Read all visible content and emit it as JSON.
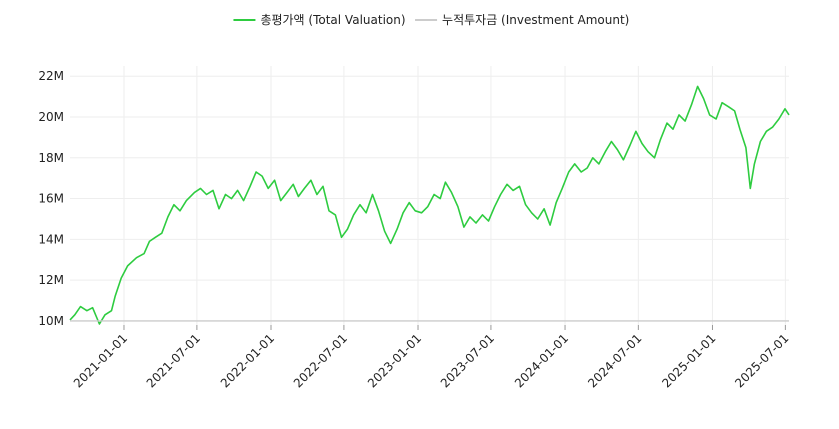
{
  "chart_data": {
    "type": "line",
    "title": "",
    "xlabel": "",
    "ylabel": "",
    "x_range": [
      "2020-08-20",
      "2025-07-10"
    ],
    "ylim": [
      9800000,
      22500000
    ],
    "grid": true,
    "legend_position": "top-center",
    "x_ticks": [
      "2021-01-01",
      "2021-07-01",
      "2022-01-01",
      "2022-07-01",
      "2023-01-01",
      "2023-07-01",
      "2024-01-01",
      "2024-07-01",
      "2025-01-01",
      "2025-07-01"
    ],
    "y_ticks": [
      {
        "value": 10000000,
        "label": "10M"
      },
      {
        "value": 12000000,
        "label": "12M"
      },
      {
        "value": 14000000,
        "label": "14M"
      },
      {
        "value": 16000000,
        "label": "16M"
      },
      {
        "value": 18000000,
        "label": "18M"
      },
      {
        "value": 20000000,
        "label": "20M"
      },
      {
        "value": 22000000,
        "label": "22M"
      }
    ],
    "series": [
      {
        "name": "총평가액 (Total Valuation)",
        "color": "#2ecc40",
        "points": [
          [
            "2020-08-20",
            10050000
          ],
          [
            "2020-09-01",
            10300000
          ],
          [
            "2020-09-15",
            10700000
          ],
          [
            "2020-10-01",
            10500000
          ],
          [
            "2020-10-15",
            10650000
          ],
          [
            "2020-11-01",
            9850000
          ],
          [
            "2020-11-15",
            10300000
          ],
          [
            "2020-12-01",
            10500000
          ],
          [
            "2020-12-10",
            11200000
          ],
          [
            "2020-12-25",
            12100000
          ],
          [
            "2021-01-10",
            12700000
          ],
          [
            "2021-02-01",
            13100000
          ],
          [
            "2021-02-20",
            13300000
          ],
          [
            "2021-03-05",
            13900000
          ],
          [
            "2021-03-20",
            14100000
          ],
          [
            "2021-04-05",
            14300000
          ],
          [
            "2021-04-20",
            15100000
          ],
          [
            "2021-05-05",
            15700000
          ],
          [
            "2021-05-20",
            15400000
          ],
          [
            "2021-06-05",
            15900000
          ],
          [
            "2021-06-25",
            16300000
          ],
          [
            "2021-07-10",
            16500000
          ],
          [
            "2021-07-25",
            16200000
          ],
          [
            "2021-08-10",
            16400000
          ],
          [
            "2021-08-25",
            15500000
          ],
          [
            "2021-09-10",
            16200000
          ],
          [
            "2021-09-25",
            16000000
          ],
          [
            "2021-10-10",
            16400000
          ],
          [
            "2021-10-25",
            15900000
          ],
          [
            "2021-11-10",
            16600000
          ],
          [
            "2021-11-25",
            17300000
          ],
          [
            "2021-12-10",
            17100000
          ],
          [
            "2021-12-25",
            16500000
          ],
          [
            "2022-01-10",
            16900000
          ],
          [
            "2022-01-25",
            15900000
          ],
          [
            "2022-02-10",
            16300000
          ],
          [
            "2022-02-25",
            16700000
          ],
          [
            "2022-03-10",
            16100000
          ],
          [
            "2022-03-25",
            16500000
          ],
          [
            "2022-04-10",
            16900000
          ],
          [
            "2022-04-25",
            16200000
          ],
          [
            "2022-05-10",
            16600000
          ],
          [
            "2022-05-25",
            15400000
          ],
          [
            "2022-06-10",
            15200000
          ],
          [
            "2022-06-25",
            14100000
          ],
          [
            "2022-07-10",
            14500000
          ],
          [
            "2022-07-25",
            15200000
          ],
          [
            "2022-08-10",
            15700000
          ],
          [
            "2022-08-25",
            15300000
          ],
          [
            "2022-09-10",
            16200000
          ],
          [
            "2022-09-25",
            15400000
          ],
          [
            "2022-10-10",
            14400000
          ],
          [
            "2022-10-25",
            13800000
          ],
          [
            "2022-11-10",
            14500000
          ],
          [
            "2022-11-25",
            15300000
          ],
          [
            "2022-12-10",
            15800000
          ],
          [
            "2022-12-25",
            15400000
          ],
          [
            "2023-01-10",
            15300000
          ],
          [
            "2023-01-25",
            15600000
          ],
          [
            "2023-02-10",
            16200000
          ],
          [
            "2023-02-25",
            16000000
          ],
          [
            "2023-03-10",
            16800000
          ],
          [
            "2023-03-25",
            16300000
          ],
          [
            "2023-04-10",
            15600000
          ],
          [
            "2023-04-25",
            14600000
          ],
          [
            "2023-05-10",
            15100000
          ],
          [
            "2023-05-25",
            14800000
          ],
          [
            "2023-06-10",
            15200000
          ],
          [
            "2023-06-25",
            14900000
          ],
          [
            "2023-07-10",
            15600000
          ],
          [
            "2023-07-25",
            16200000
          ],
          [
            "2023-08-10",
            16700000
          ],
          [
            "2023-08-25",
            16400000
          ],
          [
            "2023-09-10",
            16600000
          ],
          [
            "2023-09-25",
            15700000
          ],
          [
            "2023-10-10",
            15300000
          ],
          [
            "2023-10-25",
            15000000
          ],
          [
            "2023-11-10",
            15500000
          ],
          [
            "2023-11-25",
            14700000
          ],
          [
            "2023-12-10",
            15800000
          ],
          [
            "2023-12-25",
            16500000
          ],
          [
            "2024-01-10",
            17300000
          ],
          [
            "2024-01-25",
            17700000
          ],
          [
            "2024-02-10",
            17300000
          ],
          [
            "2024-02-25",
            17500000
          ],
          [
            "2024-03-10",
            18000000
          ],
          [
            "2024-03-25",
            17700000
          ],
          [
            "2024-04-10",
            18300000
          ],
          [
            "2024-04-25",
            18800000
          ],
          [
            "2024-05-10",
            18400000
          ],
          [
            "2024-05-25",
            17900000
          ],
          [
            "2024-06-10",
            18600000
          ],
          [
            "2024-06-25",
            19300000
          ],
          [
            "2024-07-10",
            18700000
          ],
          [
            "2024-07-25",
            18300000
          ],
          [
            "2024-08-10",
            18000000
          ],
          [
            "2024-08-25",
            18900000
          ],
          [
            "2024-09-10",
            19700000
          ],
          [
            "2024-09-25",
            19400000
          ],
          [
            "2024-10-10",
            20100000
          ],
          [
            "2024-10-25",
            19800000
          ],
          [
            "2024-11-10",
            20600000
          ],
          [
            "2024-11-25",
            21500000
          ],
          [
            "2024-12-10",
            20900000
          ],
          [
            "2024-12-25",
            20100000
          ],
          [
            "2025-01-10",
            19900000
          ],
          [
            "2025-01-25",
            20700000
          ],
          [
            "2025-02-10",
            20500000
          ],
          [
            "2025-02-25",
            20300000
          ],
          [
            "2025-03-10",
            19400000
          ],
          [
            "2025-03-25",
            18500000
          ],
          [
            "2025-04-05",
            16500000
          ],
          [
            "2025-04-15",
            17700000
          ],
          [
            "2025-04-30",
            18800000
          ],
          [
            "2025-05-15",
            19300000
          ],
          [
            "2025-05-30",
            19500000
          ],
          [
            "2025-06-15",
            19900000
          ],
          [
            "2025-06-30",
            20400000
          ],
          [
            "2025-07-10",
            20100000
          ]
        ]
      },
      {
        "name": "누적투자금 (Investment Amount)",
        "color": "#cccccc",
        "points": [
          [
            "2020-08-20",
            10000000
          ],
          [
            "2025-07-10",
            10000000
          ]
        ]
      }
    ]
  }
}
